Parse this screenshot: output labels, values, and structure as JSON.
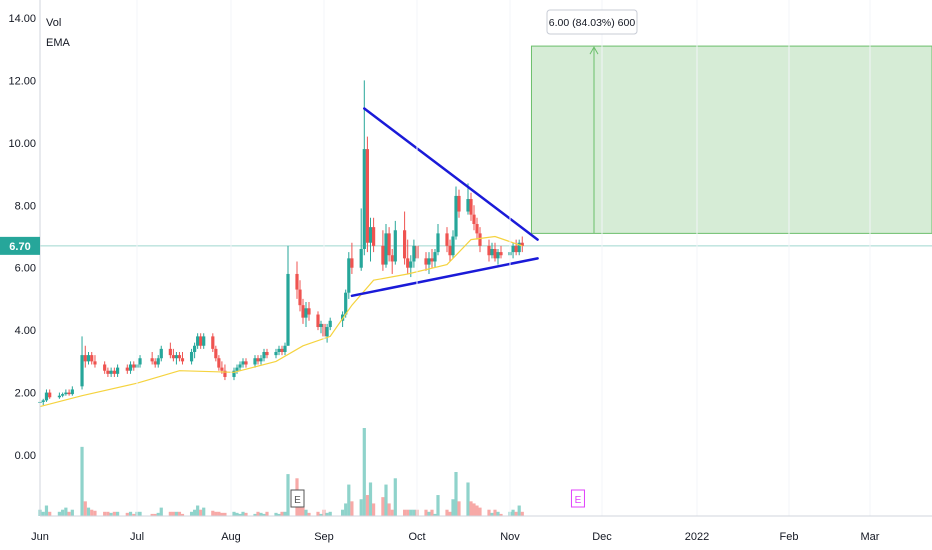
{
  "legend": {
    "vol_label": "Vol",
    "ema_label": "EMA"
  },
  "current_price": "6.70",
  "measure_label": "6.00 (84.03%) 600",
  "earnings_marker": "E",
  "colors": {
    "up": "#26a69a",
    "down": "#ef5350",
    "up_vol": "#8fd3cb",
    "down_vol": "#f7a9a7",
    "ema": "#f5d33f",
    "trendline": "#1a1ad8",
    "target_fill": "#d6ecd6",
    "target_line": "#6bbf6b",
    "price_tag": "#26a69a",
    "earn_past": "#555555",
    "earn_future": "#e040fb",
    "grid": "#f0f3fa"
  },
  "chart_data": {
    "type": "candlestick",
    "title": "",
    "y_axis": {
      "ticks": [
        "14.00",
        "12.00",
        "10.00",
        "8.00",
        "6.00",
        "4.00",
        "2.00",
        "0.00"
      ],
      "tick_values": [
        14,
        12,
        10,
        8,
        6,
        4,
        2,
        0
      ],
      "range": [
        -2,
        14
      ]
    },
    "x_axis": {
      "ticks": [
        "Jun",
        "Jul",
        "Aug",
        "Sep",
        "Oct",
        "Nov",
        "Dec",
        "2022",
        "Feb",
        "Mar"
      ],
      "tick_dates": [
        "2021-06-01",
        "2021-07-01",
        "2021-08-01",
        "2021-09-01",
        "2021-10-01",
        "2021-11-01",
        "2021-12-01",
        "2022-01-01",
        "2022-02-01",
        "2022-03-01"
      ],
      "range": [
        "2021-06-01",
        "2022-03-31"
      ]
    },
    "ohlc": [
      [
        "2021-06-01",
        1.7,
        1.9,
        1.6,
        1.7
      ],
      [
        "2021-06-02",
        1.7,
        1.8,
        1.6,
        1.75
      ],
      [
        "2021-06-03",
        1.75,
        2.1,
        1.7,
        2.0
      ],
      [
        "2021-06-04",
        2.0,
        2.1,
        1.8,
        1.85
      ],
      [
        "2021-06-07",
        1.85,
        2.0,
        1.8,
        1.9
      ],
      [
        "2021-06-08",
        1.9,
        2.0,
        1.85,
        1.95
      ],
      [
        "2021-06-09",
        1.95,
        2.1,
        1.9,
        2.0
      ],
      [
        "2021-06-10",
        2.0,
        2.1,
        1.9,
        1.95
      ],
      [
        "2021-06-11",
        1.95,
        2.2,
        1.9,
        2.1
      ],
      [
        "2021-06-14",
        2.2,
        3.8,
        2.1,
        3.2
      ],
      [
        "2021-06-15",
        3.2,
        3.5,
        2.8,
        3.0
      ],
      [
        "2021-06-16",
        3.0,
        3.3,
        2.9,
        3.2
      ],
      [
        "2021-06-17",
        3.2,
        3.3,
        2.9,
        3.0
      ],
      [
        "2021-06-18",
        3.0,
        3.2,
        2.8,
        2.9
      ],
      [
        "2021-06-21",
        2.9,
        3.0,
        2.6,
        2.7
      ],
      [
        "2021-06-22",
        2.7,
        2.8,
        2.5,
        2.6
      ],
      [
        "2021-06-23",
        2.6,
        2.8,
        2.5,
        2.7
      ],
      [
        "2021-06-24",
        2.7,
        2.8,
        2.5,
        2.6
      ],
      [
        "2021-06-25",
        2.6,
        2.9,
        2.5,
        2.8
      ],
      [
        "2021-06-28",
        2.8,
        2.9,
        2.6,
        2.7
      ],
      [
        "2021-06-29",
        2.7,
        3.0,
        2.6,
        2.9
      ],
      [
        "2021-06-30",
        2.9,
        3.0,
        2.7,
        2.8
      ],
      [
        "2021-07-01",
        2.8,
        3.0,
        2.7,
        2.9
      ],
      [
        "2021-07-02",
        2.9,
        3.2,
        2.8,
        3.1
      ],
      [
        "2021-07-06",
        3.1,
        3.3,
        2.9,
        3.0
      ],
      [
        "2021-07-07",
        3.0,
        3.1,
        2.8,
        2.9
      ],
      [
        "2021-07-08",
        2.9,
        3.2,
        2.8,
        3.1
      ],
      [
        "2021-07-09",
        3.1,
        3.5,
        3.0,
        3.4
      ],
      [
        "2021-07-12",
        3.4,
        3.6,
        3.1,
        3.2
      ],
      [
        "2021-07-13",
        3.2,
        3.4,
        3.0,
        3.1
      ],
      [
        "2021-07-14",
        3.1,
        3.3,
        2.9,
        3.2
      ],
      [
        "2021-07-15",
        3.2,
        3.3,
        3.0,
        3.1
      ],
      [
        "2021-07-16",
        3.1,
        3.3,
        2.9,
        3.0
      ],
      [
        "2021-07-19",
        3.0,
        3.4,
        2.9,
        3.3
      ],
      [
        "2021-07-20",
        3.3,
        3.6,
        3.1,
        3.5
      ],
      [
        "2021-07-21",
        3.5,
        3.9,
        3.4,
        3.8
      ],
      [
        "2021-07-22",
        3.8,
        3.9,
        3.4,
        3.5
      ],
      [
        "2021-07-23",
        3.5,
        3.9,
        3.4,
        3.8
      ],
      [
        "2021-07-26",
        3.8,
        3.9,
        3.3,
        3.4
      ],
      [
        "2021-07-27",
        3.4,
        3.5,
        3.0,
        3.1
      ],
      [
        "2021-07-28",
        3.1,
        3.2,
        2.7,
        2.8
      ],
      [
        "2021-07-29",
        2.8,
        3.0,
        2.6,
        2.7
      ],
      [
        "2021-07-30",
        2.7,
        2.9,
        2.4,
        2.5
      ],
      [
        "2021-08-02",
        2.5,
        2.8,
        2.4,
        2.7
      ],
      [
        "2021-08-03",
        2.7,
        2.9,
        2.6,
        2.8
      ],
      [
        "2021-08-04",
        2.8,
        3.0,
        2.7,
        2.9
      ],
      [
        "2021-08-05",
        2.9,
        3.1,
        2.8,
        3.0
      ],
      [
        "2021-08-06",
        3.0,
        3.1,
        2.8,
        2.9
      ],
      [
        "2021-08-09",
        2.9,
        3.2,
        2.8,
        3.1
      ],
      [
        "2021-08-10",
        3.1,
        3.2,
        2.9,
        3.0
      ],
      [
        "2021-08-11",
        3.0,
        3.2,
        2.9,
        3.1
      ],
      [
        "2021-08-12",
        3.1,
        3.4,
        3.0,
        3.3
      ],
      [
        "2021-08-13",
        3.3,
        3.4,
        3.1,
        3.2
      ],
      [
        "2021-08-16",
        3.2,
        3.4,
        3.1,
        3.3
      ],
      [
        "2021-08-17",
        3.3,
        3.5,
        3.2,
        3.4
      ],
      [
        "2021-08-18",
        3.4,
        3.5,
        3.2,
        3.3
      ],
      [
        "2021-08-19",
        3.3,
        3.6,
        3.2,
        3.5
      ],
      [
        "2021-08-20",
        3.5,
        6.7,
        3.5,
        5.8
      ],
      [
        "2021-08-23",
        5.8,
        6.2,
        5.0,
        5.3
      ],
      [
        "2021-08-24",
        5.3,
        5.6,
        4.6,
        4.8
      ],
      [
        "2021-08-25",
        4.8,
        5.0,
        4.2,
        4.4
      ],
      [
        "2021-08-26",
        4.4,
        4.9,
        4.1,
        4.7
      ],
      [
        "2021-08-27",
        4.7,
        4.9,
        4.3,
        4.5
      ],
      [
        "2021-08-30",
        4.5,
        4.6,
        4.0,
        4.1
      ],
      [
        "2021-08-31",
        4.1,
        4.3,
        3.9,
        4.2
      ],
      [
        "2021-09-01",
        4.2,
        4.4,
        3.7,
        3.8
      ],
      [
        "2021-09-02",
        3.8,
        4.2,
        3.6,
        4.1
      ],
      [
        "2021-09-03",
        4.1,
        4.4,
        4.0,
        4.3
      ],
      [
        "2021-09-07",
        4.3,
        4.6,
        4.1,
        4.5
      ],
      [
        "2021-09-08",
        4.5,
        5.3,
        4.4,
        5.2
      ],
      [
        "2021-09-09",
        5.2,
        6.5,
        5.0,
        6.3
      ],
      [
        "2021-09-10",
        6.3,
        6.8,
        5.8,
        6.0
      ],
      [
        "2021-09-13",
        6.0,
        7.9,
        5.9,
        6.6
      ],
      [
        "2021-09-14",
        6.6,
        12.0,
        6.4,
        9.8
      ],
      [
        "2021-09-15",
        9.8,
        10.2,
        6.5,
        6.8
      ],
      [
        "2021-09-16",
        6.8,
        7.6,
        6.2,
        7.3
      ],
      [
        "2021-09-17",
        7.3,
        7.6,
        6.5,
        6.7
      ],
      [
        "2021-09-20",
        6.7,
        7.2,
        5.9,
        6.1
      ],
      [
        "2021-09-21",
        6.1,
        7.4,
        6.0,
        7.1
      ],
      [
        "2021-09-22",
        7.1,
        7.3,
        6.2,
        6.4
      ],
      [
        "2021-09-23",
        6.4,
        6.6,
        5.8,
        6.2
      ],
      [
        "2021-09-24",
        6.2,
        7.5,
        6.1,
        7.2
      ],
      [
        "2021-09-27",
        7.2,
        7.8,
        6.1,
        6.3
      ],
      [
        "2021-09-28",
        6.3,
        6.9,
        5.8,
        6.0
      ],
      [
        "2021-09-29",
        6.0,
        6.4,
        5.7,
        6.2
      ],
      [
        "2021-09-30",
        6.2,
        6.9,
        6.0,
        6.7
      ],
      [
        "2021-10-01",
        6.7,
        6.9,
        6.1,
        6.3
      ],
      [
        "2021-10-04",
        6.3,
        6.5,
        5.9,
        6.1
      ],
      [
        "2021-10-05",
        6.1,
        6.5,
        5.8,
        6.3
      ],
      [
        "2021-10-06",
        6.3,
        6.6,
        6.0,
        6.2
      ],
      [
        "2021-10-07",
        6.2,
        6.6,
        6.0,
        6.5
      ],
      [
        "2021-10-08",
        6.5,
        7.4,
        6.4,
        7.1
      ],
      [
        "2021-10-11",
        7.1,
        7.3,
        6.5,
        6.7
      ],
      [
        "2021-10-12",
        6.7,
        6.9,
        6.2,
        6.4
      ],
      [
        "2021-10-13",
        6.4,
        7.2,
        6.3,
        7.0
      ],
      [
        "2021-10-14",
        7.0,
        8.6,
        6.9,
        8.3
      ],
      [
        "2021-10-15",
        8.3,
        8.5,
        7.6,
        7.8
      ],
      [
        "2021-10-18",
        7.8,
        8.7,
        7.7,
        8.2
      ],
      [
        "2021-10-19",
        8.2,
        8.4,
        7.5,
        7.7
      ],
      [
        "2021-10-20",
        7.7,
        8.0,
        7.2,
        7.4
      ],
      [
        "2021-10-21",
        7.4,
        7.6,
        6.9,
        7.1
      ],
      [
        "2021-10-22",
        7.1,
        7.3,
        6.5,
        6.7
      ],
      [
        "2021-10-25",
        6.7,
        6.9,
        6.2,
        6.4
      ],
      [
        "2021-10-26",
        6.4,
        6.8,
        6.3,
        6.6
      ],
      [
        "2021-10-27",
        6.6,
        6.8,
        6.2,
        6.3
      ],
      [
        "2021-10-28",
        6.3,
        6.6,
        6.1,
        6.5
      ],
      [
        "2021-10-29",
        6.5,
        6.7,
        6.3,
        6.4
      ],
      [
        "2021-11-01",
        6.4,
        6.6,
        6.2,
        6.5
      ],
      [
        "2021-11-02",
        6.5,
        6.8,
        6.3,
        6.7
      ],
      [
        "2021-11-03",
        6.7,
        6.9,
        6.4,
        6.5
      ],
      [
        "2021-11-04",
        6.5,
        6.9,
        6.4,
        6.8
      ],
      [
        "2021-11-05",
        6.8,
        7.0,
        6.5,
        6.7
      ]
    ],
    "volume": [
      [
        "2021-06-01",
        0.3
      ],
      [
        "2021-06-02",
        0.2
      ],
      [
        "2021-06-03",
        0.5
      ],
      [
        "2021-06-04",
        0.2
      ],
      [
        "2021-06-07",
        0.2
      ],
      [
        "2021-06-08",
        0.3
      ],
      [
        "2021-06-09",
        0.4
      ],
      [
        "2021-06-10",
        0.2
      ],
      [
        "2021-06-11",
        0.3
      ],
      [
        "2021-06-14",
        3.3
      ],
      [
        "2021-06-15",
        0.7
      ],
      [
        "2021-06-16",
        0.4
      ],
      [
        "2021-06-17",
        0.3
      ],
      [
        "2021-06-18",
        0.25
      ],
      [
        "2021-06-21",
        0.2
      ],
      [
        "2021-06-22",
        0.2
      ],
      [
        "2021-06-23",
        0.15
      ],
      [
        "2021-06-24",
        0.2
      ],
      [
        "2021-06-25",
        0.2
      ],
      [
        "2021-06-28",
        0.15
      ],
      [
        "2021-06-29",
        0.2
      ],
      [
        "2021-06-30",
        0.1
      ],
      [
        "2021-07-01",
        0.2
      ],
      [
        "2021-07-02",
        0.2
      ],
      [
        "2021-07-06",
        0.1
      ],
      [
        "2021-07-07",
        0.1
      ],
      [
        "2021-07-08",
        0.15
      ],
      [
        "2021-07-09",
        0.4
      ],
      [
        "2021-07-12",
        0.2
      ],
      [
        "2021-07-13",
        0.2
      ],
      [
        "2021-07-14",
        0.2
      ],
      [
        "2021-07-15",
        0.2
      ],
      [
        "2021-07-16",
        0.1
      ],
      [
        "2021-07-19",
        0.2
      ],
      [
        "2021-07-20",
        0.3
      ],
      [
        "2021-07-21",
        0.5
      ],
      [
        "2021-07-22",
        0.3
      ],
      [
        "2021-07-23",
        0.4
      ],
      [
        "2021-07-26",
        0.25
      ],
      [
        "2021-07-27",
        0.2
      ],
      [
        "2021-07-28",
        0.2
      ],
      [
        "2021-07-29",
        0.15
      ],
      [
        "2021-07-30",
        0.15
      ],
      [
        "2021-08-02",
        0.2
      ],
      [
        "2021-08-03",
        0.15
      ],
      [
        "2021-08-04",
        0.1
      ],
      [
        "2021-08-05",
        0.2
      ],
      [
        "2021-08-06",
        0.15
      ],
      [
        "2021-08-09",
        0.1
      ],
      [
        "2021-08-10",
        0.2
      ],
      [
        "2021-08-11",
        0.15
      ],
      [
        "2021-08-12",
        0.1
      ],
      [
        "2021-08-13",
        0.2
      ],
      [
        "2021-08-16",
        0.15
      ],
      [
        "2021-08-17",
        0.1
      ],
      [
        "2021-08-18",
        0.2
      ],
      [
        "2021-08-19",
        0.2
      ],
      [
        "2021-08-20",
        2.0
      ],
      [
        "2021-08-23",
        1.8
      ],
      [
        "2021-08-24",
        0.6
      ],
      [
        "2021-08-25",
        0.4
      ],
      [
        "2021-08-26",
        0.3
      ],
      [
        "2021-08-27",
        0.15
      ],
      [
        "2021-08-30",
        0.2
      ],
      [
        "2021-08-31",
        0.1
      ],
      [
        "2021-09-01",
        0.3
      ],
      [
        "2021-09-02",
        0.15
      ],
      [
        "2021-09-03",
        0.2
      ],
      [
        "2021-09-07",
        0.3
      ],
      [
        "2021-09-08",
        0.6
      ],
      [
        "2021-09-09",
        1.5
      ],
      [
        "2021-09-10",
        0.7
      ],
      [
        "2021-09-13",
        0.8
      ],
      [
        "2021-09-14",
        4.2
      ],
      [
        "2021-09-15",
        1.0
      ],
      [
        "2021-09-16",
        1.6
      ],
      [
        "2021-09-17",
        0.6
      ],
      [
        "2021-09-20",
        0.9
      ],
      [
        "2021-09-21",
        1.5
      ],
      [
        "2021-09-22",
        0.6
      ],
      [
        "2021-09-23",
        0.3
      ],
      [
        "2021-09-24",
        1.8
      ],
      [
        "2021-09-27",
        0.3
      ],
      [
        "2021-09-28",
        0.3
      ],
      [
        "2021-09-29",
        0.3
      ],
      [
        "2021-09-30",
        0.3
      ],
      [
        "2021-10-01",
        0.3
      ],
      [
        "2021-10-04",
        0.3
      ],
      [
        "2021-10-05",
        0.2
      ],
      [
        "2021-10-06",
        0.3
      ],
      [
        "2021-10-07",
        0.1
      ],
      [
        "2021-10-08",
        1.0
      ],
      [
        "2021-10-11",
        0.3
      ],
      [
        "2021-10-12",
        0.2
      ],
      [
        "2021-10-13",
        0.8
      ],
      [
        "2021-10-14",
        2.1
      ],
      [
        "2021-10-15",
        0.7
      ],
      [
        "2021-10-18",
        1.6
      ],
      [
        "2021-10-19",
        0.7
      ],
      [
        "2021-10-20",
        0.6
      ],
      [
        "2021-10-21",
        0.5
      ],
      [
        "2021-10-22",
        0.4
      ],
      [
        "2021-10-25",
        0.3
      ],
      [
        "2021-10-26",
        0.15
      ],
      [
        "2021-10-27",
        0.3
      ],
      [
        "2021-10-28",
        0.2
      ],
      [
        "2021-10-29",
        0.1
      ],
      [
        "2021-11-01",
        0.2
      ],
      [
        "2021-11-02",
        0.3
      ],
      [
        "2021-11-03",
        0.2
      ],
      [
        "2021-11-04",
        0.5
      ],
      [
        "2021-11-05",
        0.2
      ]
    ],
    "ema_series": [
      [
        "2021-06-01",
        1.55
      ],
      [
        "2021-06-14",
        1.9
      ],
      [
        "2021-07-01",
        2.3
      ],
      [
        "2021-07-15",
        2.7
      ],
      [
        "2021-08-02",
        2.65
      ],
      [
        "2021-08-16",
        3.0
      ],
      [
        "2021-08-25",
        3.5
      ],
      [
        "2021-09-03",
        3.8
      ],
      [
        "2021-09-10",
        4.8
      ],
      [
        "2021-09-17",
        5.6
      ],
      [
        "2021-09-28",
        5.8
      ],
      [
        "2021-10-11",
        6.1
      ],
      [
        "2021-10-19",
        6.9
      ],
      [
        "2021-10-27",
        7.0
      ],
      [
        "2021-11-05",
        6.7
      ]
    ],
    "trendlines": [
      {
        "from": [
          "2021-09-14",
          11.1
        ],
        "to": [
          "2021-11-10",
          6.9
        ]
      },
      {
        "from": [
          "2021-09-10",
          5.1
        ],
        "to": [
          "2021-11-10",
          6.3
        ]
      }
    ],
    "target_zone": {
      "from_date": "2021-11-08",
      "to_date": "2022-03-31",
      "low": 7.1,
      "high": 13.1
    },
    "earnings_dates": {
      "past": "2021-08-23",
      "future": "2021-11-23"
    },
    "grid": false
  }
}
